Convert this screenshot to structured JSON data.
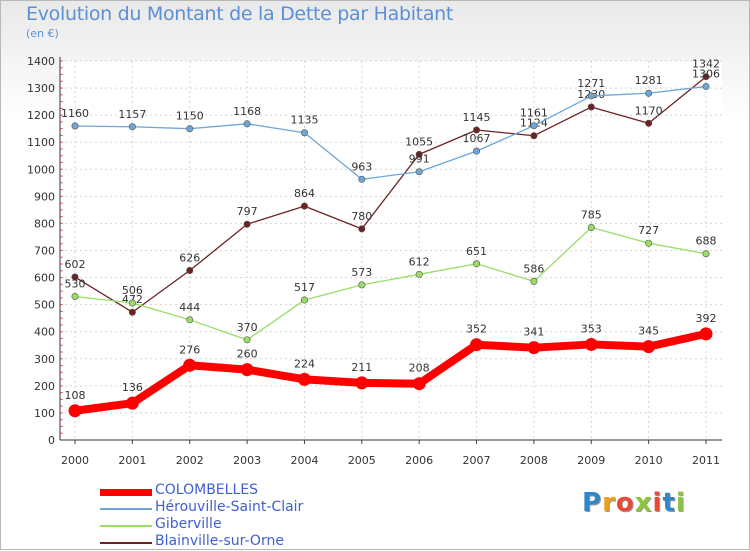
{
  "title": "Evolution du Montant de la Dette par Habitant",
  "unit": "(en €)",
  "logo": {
    "letters": [
      "P",
      "r",
      "o",
      "x",
      "i",
      "t",
      "i"
    ],
    "colors": [
      "#2f86c8",
      "#e8a020",
      "#e84a3a",
      "#8cc63f",
      "#e84a3a",
      "#2f86c8",
      "#8cc63f"
    ]
  },
  "chart_data": {
    "type": "line",
    "title": "Evolution du Montant de la Dette par Habitant",
    "ylabel": "(en €)",
    "xlabel": "",
    "x": [
      "2000",
      "2001",
      "2002",
      "2003",
      "2004",
      "2005",
      "2006",
      "2007",
      "2008",
      "2009",
      "2010",
      "2011"
    ],
    "ylim": [
      0,
      1400
    ],
    "yticks": [
      0,
      100,
      200,
      300,
      400,
      500,
      600,
      700,
      800,
      900,
      1000,
      1100,
      1200,
      1300,
      1400
    ],
    "grid": true,
    "legend_position": "bottom-left",
    "series": [
      {
        "name": "Blainville-sur-Orne",
        "color": "#6e2222",
        "values": [
          602,
          472,
          626,
          797,
          864,
          780,
          1055,
          1145,
          1124,
          1230,
          1170,
          1342
        ]
      },
      {
        "name": "Giberville",
        "color": "#99dd66",
        "values": [
          530,
          506,
          444,
          370,
          517,
          573,
          612,
          651,
          586,
          785,
          727,
          688
        ]
      },
      {
        "name": "Hérouville-Saint-Clair",
        "color": "#6fa6d6",
        "values": [
          1160,
          1157,
          1150,
          1168,
          1135,
          963,
          991,
          1067,
          1161,
          1271,
          1281,
          1306
        ]
      },
      {
        "name": "COLOMBELLES",
        "color": "#ff0000",
        "values": [
          108,
          136,
          276,
          260,
          224,
          211,
          208,
          352,
          341,
          353,
          345,
          392
        ]
      }
    ],
    "legend": [
      "COLOMBELLES",
      "Hérouville-Saint-Clair",
      "Giberville",
      "Blainville-sur-Orne"
    ]
  }
}
